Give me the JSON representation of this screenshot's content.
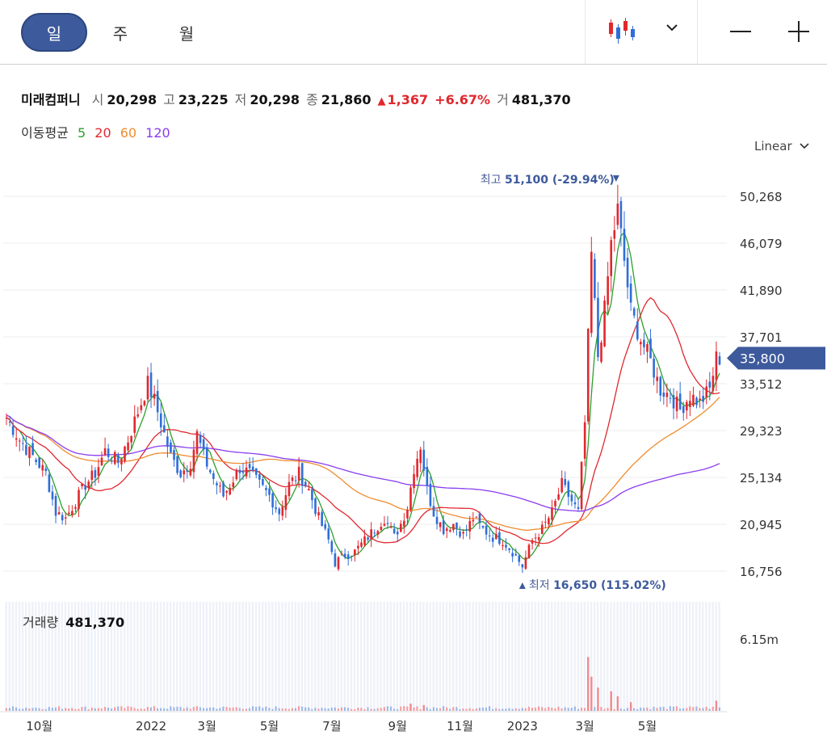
{
  "toolbar": {
    "periods": [
      {
        "label": "일",
        "active": true
      },
      {
        "label": "주",
        "active": false
      },
      {
        "label": "월",
        "active": false
      }
    ],
    "chart_type_icon": "candlestick-icon",
    "dropdown_icon": "chevron-down-icon",
    "zoom_out_icon": "minus-icon",
    "zoom_in_icon": "plus-icon"
  },
  "quote": {
    "name": "미래컴퍼니",
    "open_label": "시",
    "open": "20,298",
    "high_label": "고",
    "high": "23,225",
    "low_label": "저",
    "low": "20,298",
    "close_label": "종",
    "close": "21,860",
    "change_arrow": "▲",
    "change": "1,367",
    "change_pct": "+6.67%",
    "volume_label": "거",
    "volume": "481,370"
  },
  "moving_average": {
    "label": "이동평균",
    "periods": [
      {
        "value": "5",
        "color": "#2ca02c"
      },
      {
        "value": "20",
        "color": "#e0282e"
      },
      {
        "value": "60",
        "color": "#f08c2e"
      },
      {
        "value": "120",
        "color": "#8b3cf0"
      }
    ]
  },
  "scale": {
    "label": "Linear"
  },
  "chart_data": {
    "type": "candlestick",
    "title": "",
    "y_ticks": [
      "50,268",
      "46,079",
      "41,890",
      "37,701",
      "33,512",
      "29,323",
      "25,134",
      "20,945",
      "16,756"
    ],
    "x_ticks": [
      "10월",
      "2022",
      "3월",
      "5월",
      "7월",
      "9월",
      "11월",
      "2023",
      "3월",
      "5월"
    ],
    "ylim": [
      16756,
      50268
    ],
    "current_price": "35,800",
    "high_marker": {
      "label": "최고",
      "value": "51,100",
      "pct": "(-29.94%)"
    },
    "low_marker": {
      "label": "최저",
      "value": "16,650",
      "pct": "(115.02%)"
    },
    "close_series": [
      [
        0,
        30500
      ],
      [
        4,
        28500
      ],
      [
        8,
        27000
      ],
      [
        12,
        25500
      ],
      [
        15,
        22000
      ],
      [
        18,
        21500
      ],
      [
        20,
        22500
      ],
      [
        24,
        24500
      ],
      [
        27,
        25500
      ],
      [
        30,
        27500
      ],
      [
        34,
        26500
      ],
      [
        37,
        28500
      ],
      [
        40,
        31000
      ],
      [
        43,
        33500
      ],
      [
        45,
        32000
      ],
      [
        48,
        29000
      ],
      [
        50,
        27000
      ],
      [
        53,
        25500
      ],
      [
        56,
        26500
      ],
      [
        58,
        29000
      ],
      [
        60,
        27000
      ],
      [
        63,
        25000
      ],
      [
        66,
        23500
      ],
      [
        68,
        24500
      ],
      [
        71,
        26000
      ],
      [
        74,
        25500
      ],
      [
        77,
        24500
      ],
      [
        80,
        23500
      ],
      [
        83,
        22000
      ],
      [
        86,
        24500
      ],
      [
        89,
        25500
      ],
      [
        92,
        24000
      ],
      [
        95,
        21500
      ],
      [
        98,
        19500
      ],
      [
        100,
        17500
      ],
      [
        103,
        18200
      ],
      [
        106,
        18500
      ],
      [
        109,
        19500
      ],
      [
        112,
        20500
      ],
      [
        115,
        21500
      ],
      [
        118,
        19800
      ],
      [
        120,
        21000
      ],
      [
        122,
        22500
      ],
      [
        124,
        26000
      ],
      [
        126,
        28000
      ],
      [
        128,
        24000
      ],
      [
        130,
        22000
      ],
      [
        133,
        20500
      ],
      [
        136,
        21000
      ],
      [
        139,
        20000
      ],
      [
        142,
        21500
      ],
      [
        145,
        20500
      ],
      [
        148,
        19800
      ],
      [
        151,
        19500
      ],
      [
        154,
        18500
      ],
      [
        157,
        17200
      ],
      [
        160,
        19500
      ],
      [
        163,
        20500
      ],
      [
        166,
        22000
      ],
      [
        169,
        24500
      ],
      [
        172,
        23000
      ],
      [
        174,
        22000
      ],
      [
        176,
        30000
      ],
      [
        178,
        45000
      ],
      [
        180,
        36000
      ],
      [
        182,
        40000
      ],
      [
        184,
        46000
      ],
      [
        186,
        49000
      ],
      [
        188,
        44500
      ],
      [
        190,
        40000
      ],
      [
        193,
        37500
      ],
      [
        196,
        35500
      ],
      [
        199,
        33000
      ],
      [
        202,
        32500
      ],
      [
        205,
        31200
      ],
      [
        208,
        32500
      ],
      [
        211,
        31800
      ],
      [
        214,
        33000
      ],
      [
        216,
        35800
      ]
    ],
    "ma_series": [
      {
        "name": "5",
        "color": "#2ca02c"
      },
      {
        "name": "20",
        "color": "#e0282e"
      },
      {
        "name": "60",
        "color": "#f08c2e"
      },
      {
        "name": "120",
        "color": "#8b3cf0"
      }
    ],
    "volume_axis_tick": "6.15m",
    "volume_spikes": [
      [
        123,
        0.08
      ],
      [
        127,
        0.06
      ],
      [
        177,
        0.72
      ],
      [
        178,
        0.45
      ],
      [
        180,
        0.3
      ],
      [
        184,
        0.25
      ],
      [
        186,
        0.18
      ],
      [
        190,
        0.1
      ],
      [
        216,
        0.12
      ]
    ]
  },
  "volume": {
    "label": "거래량",
    "value": "481,370"
  }
}
